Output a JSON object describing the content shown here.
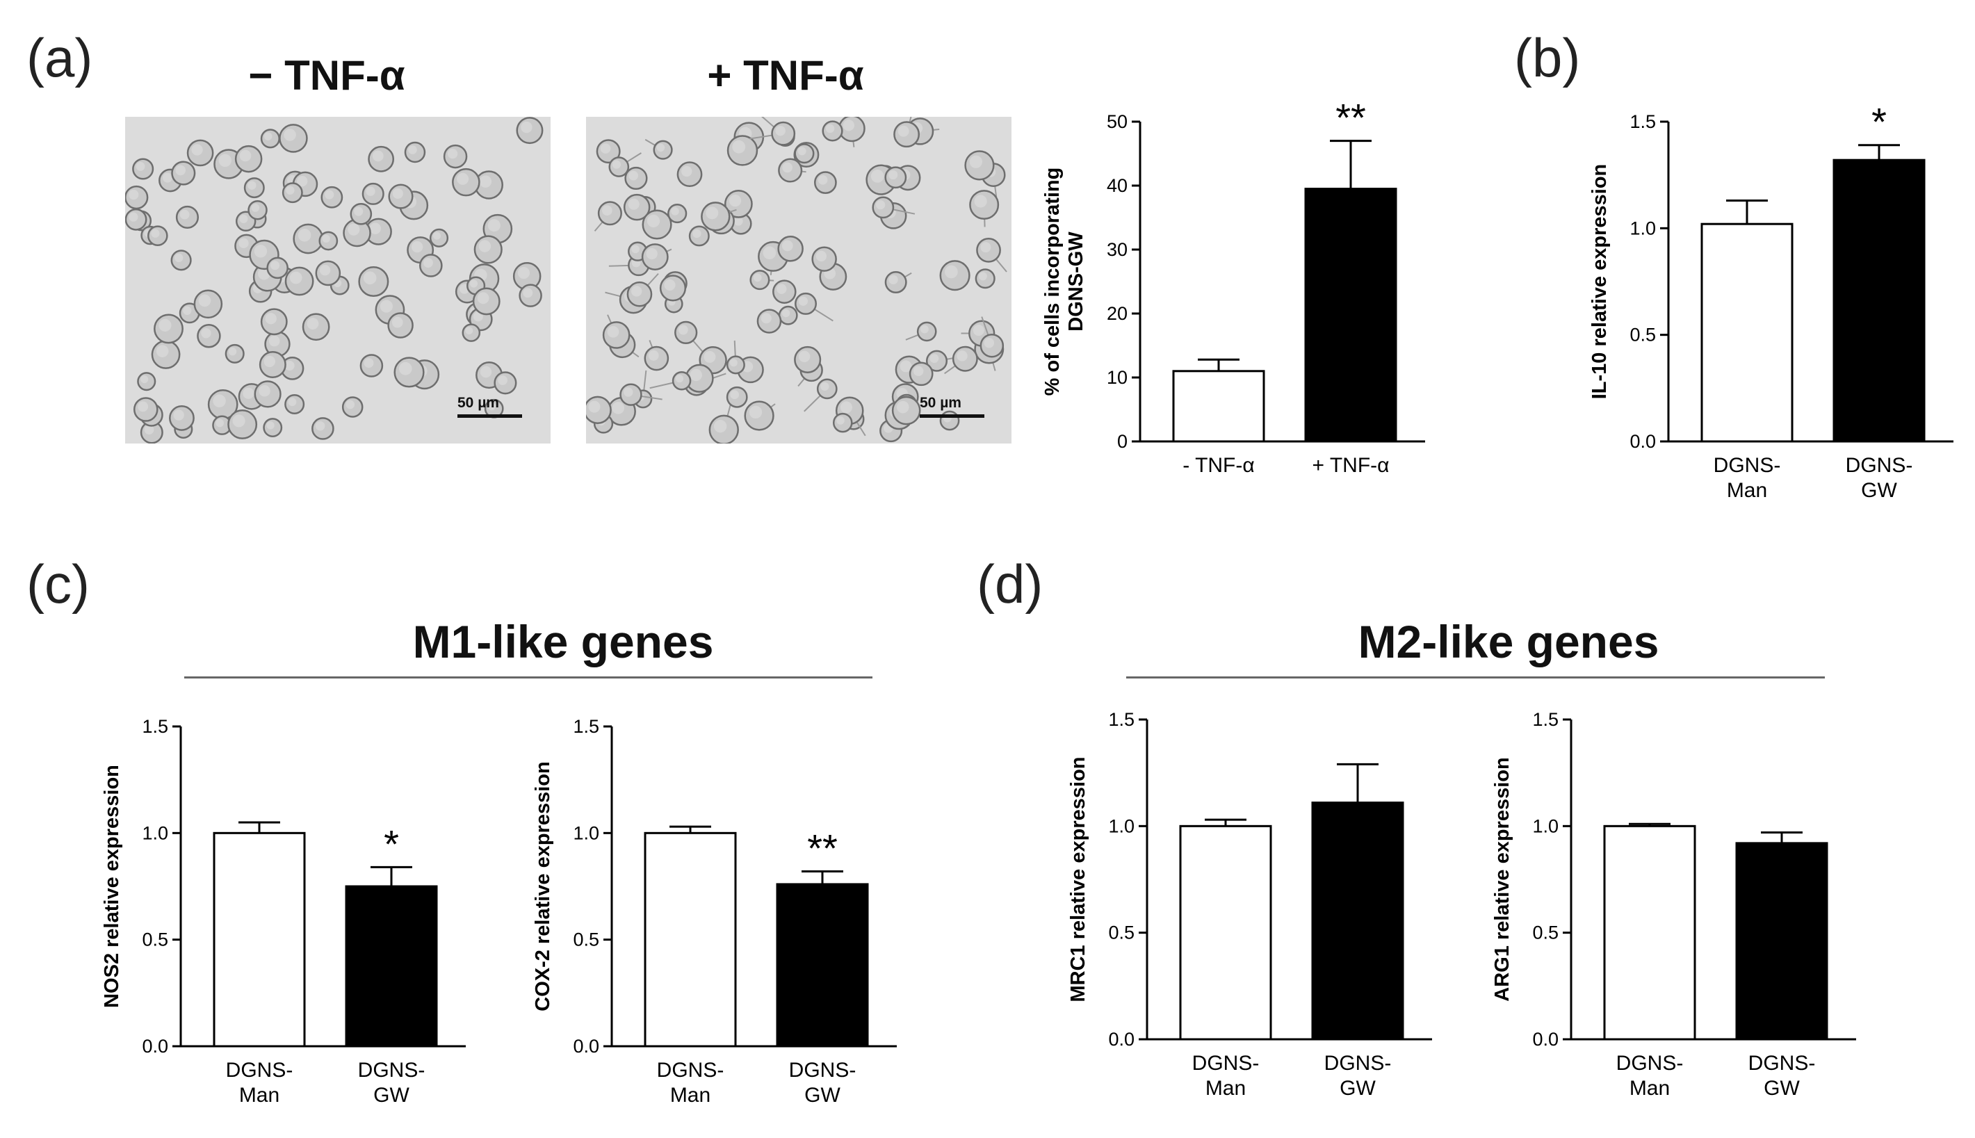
{
  "panels": {
    "a": "(a)",
    "b": "(b)",
    "c": "(c)",
    "d": "(d)"
  },
  "micrographs": [
    {
      "title": "− TNF-α",
      "scale_label": "50 µm"
    },
    {
      "title": "+ TNF-α",
      "scale_label": "50 µm"
    }
  ],
  "sections": {
    "m1": "M1-like genes",
    "m2": "M2-like genes"
  },
  "colors": {
    "bar_white": "#ffffff",
    "bar_black": "#000000",
    "axis": "#000000"
  },
  "chart_data": [
    {
      "id": "a_chart",
      "type": "bar",
      "ylabel_lines": [
        "% of cells incorporating",
        "DGNS-GW"
      ],
      "ylim": [
        0,
        50
      ],
      "yticks": [
        "0",
        "10",
        "20",
        "30",
        "40",
        "50"
      ],
      "categories": [
        [
          "- TNF-α"
        ],
        [
          "+ TNF-α"
        ]
      ],
      "values": [
        11,
        39.5
      ],
      "errors": [
        1.8,
        7.5
      ],
      "fills": [
        "white",
        "black"
      ],
      "stars": [
        "",
        "**"
      ]
    },
    {
      "id": "b_chart",
      "type": "bar",
      "ylabel_lines": [
        "IL-10 relative expression"
      ],
      "ylim": [
        0,
        1.5
      ],
      "yticks": [
        "0.0",
        "0.5",
        "1.0",
        "1.5"
      ],
      "categories": [
        [
          "DGNS-",
          "Man"
        ],
        [
          "DGNS-",
          "GW"
        ]
      ],
      "values": [
        1.02,
        1.32
      ],
      "errors": [
        0.11,
        0.07
      ],
      "fills": [
        "white",
        "black"
      ],
      "stars": [
        "",
        "*"
      ]
    },
    {
      "id": "c1_chart",
      "type": "bar",
      "ylabel_lines": [
        "NOS2 relative expression"
      ],
      "ylim": [
        0,
        1.5
      ],
      "yticks": [
        "0.0",
        "0.5",
        "1.0",
        "1.5"
      ],
      "categories": [
        [
          "DGNS-",
          "Man"
        ],
        [
          "DGNS-",
          "GW"
        ]
      ],
      "values": [
        1.0,
        0.75
      ],
      "errors": [
        0.05,
        0.09
      ],
      "fills": [
        "white",
        "black"
      ],
      "stars": [
        "",
        "*"
      ]
    },
    {
      "id": "c2_chart",
      "type": "bar",
      "ylabel_lines": [
        "COX-2 relative expression"
      ],
      "ylim": [
        0,
        1.5
      ],
      "yticks": [
        "0.0",
        "0.5",
        "1.0",
        "1.5"
      ],
      "categories": [
        [
          "DGNS-",
          "Man"
        ],
        [
          "DGNS-",
          "GW"
        ]
      ],
      "values": [
        1.0,
        0.76
      ],
      "errors": [
        0.03,
        0.06
      ],
      "fills": [
        "white",
        "black"
      ],
      "stars": [
        "",
        "**"
      ]
    },
    {
      "id": "d1_chart",
      "type": "bar",
      "ylabel_lines": [
        "MRC1 relative expression"
      ],
      "ylim": [
        0,
        1.5
      ],
      "yticks": [
        "0.0",
        "0.5",
        "1.0",
        "1.5"
      ],
      "categories": [
        [
          "DGNS-",
          "Man"
        ],
        [
          "DGNS-",
          "GW"
        ]
      ],
      "values": [
        1.0,
        1.11
      ],
      "errors": [
        0.03,
        0.18
      ],
      "fills": [
        "white",
        "black"
      ],
      "stars": [
        "",
        ""
      ]
    },
    {
      "id": "d2_chart",
      "type": "bar",
      "ylabel_lines": [
        "ARG1 relative expression"
      ],
      "ylim": [
        0,
        1.5
      ],
      "yticks": [
        "0.0",
        "0.5",
        "1.0",
        "1.5"
      ],
      "categories": [
        [
          "DGNS-",
          "Man"
        ],
        [
          "DGNS-",
          "GW"
        ]
      ],
      "values": [
        1.0,
        0.92
      ],
      "errors": [
        0.01,
        0.05
      ],
      "fills": [
        "white",
        "black"
      ],
      "stars": [
        "",
        ""
      ]
    }
  ]
}
